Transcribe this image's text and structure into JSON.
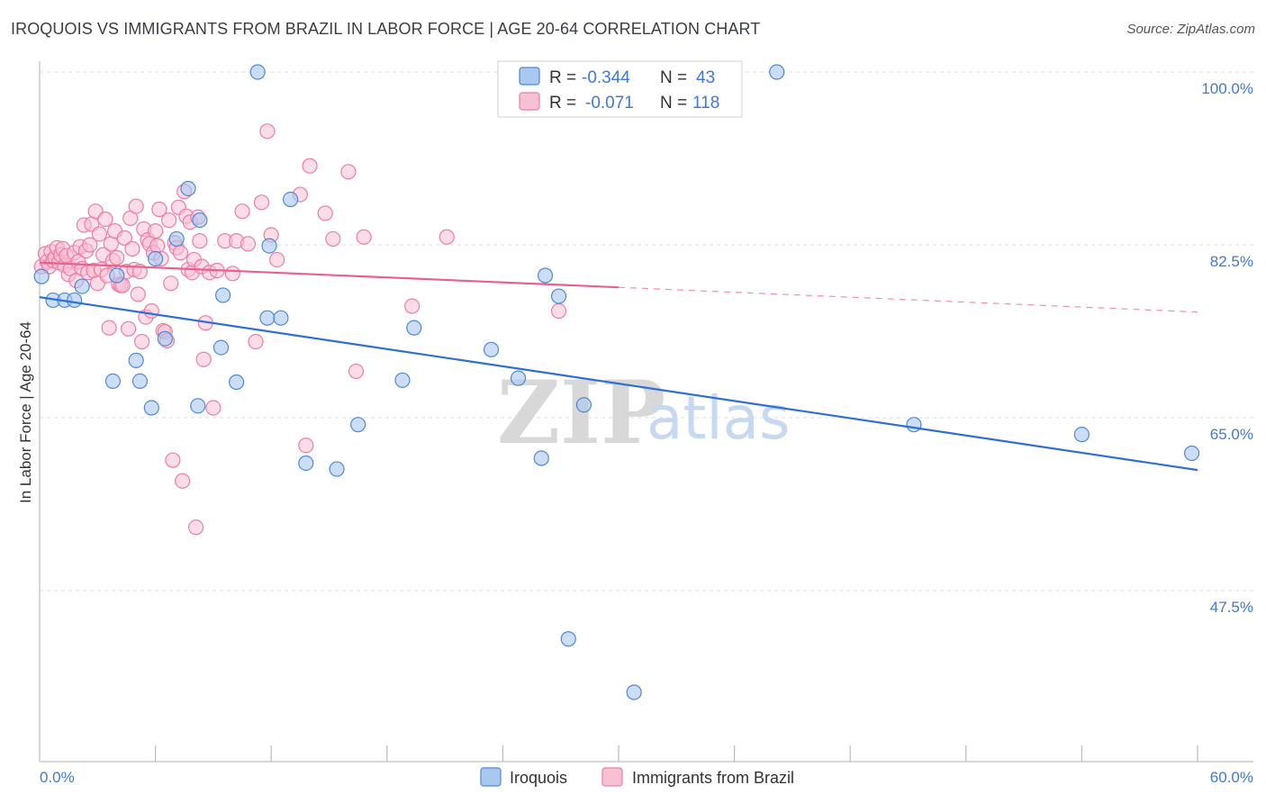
{
  "title": "IROQUOIS VS IMMIGRANTS FROM BRAZIL IN LABOR FORCE | AGE 20-64 CORRELATION CHART",
  "source": "Source: ZipAtlas.com",
  "watermark": {
    "zip": "ZIP",
    "atlas": "atlas"
  },
  "colors": {
    "iroquois_fill": "#a9c8ef",
    "iroquois_stroke": "#4f88d8",
    "iroquois_line": "#2f6fd3",
    "brazil_fill": "#f7c0d3",
    "brazil_stroke": "#e97fa4",
    "brazil_line": "#e8608d",
    "grid": "#dddddd",
    "tick_label": "#3f7ad0"
  },
  "legend": {
    "r_label": "R =",
    "n_label": "N =",
    "iroquois": {
      "r": "-0.344",
      "n": "43"
    },
    "brazil": {
      "r": "-0.071",
      "n": "118"
    }
  },
  "bottom_legend": [
    "Iroquois",
    "Immigrants from Brazil"
  ],
  "chart_data": {
    "type": "scatter",
    "title": "IROQUOIS VS IMMIGRANTS FROM BRAZIL IN LABOR FORCE | AGE 20-64 CORRELATION CHART",
    "xlabel": "",
    "ylabel": "In Labor Force | Age 20-64",
    "xlim": [
      0,
      60
    ],
    "ylim": [
      29,
      102
    ],
    "x_tick_labels": [
      "0.0%",
      "60.0%"
    ],
    "y_ticks": [
      47.5,
      65.0,
      82.5,
      100.0
    ],
    "y_tick_labels": [
      "47.5%",
      "65.0%",
      "82.5%",
      "100.0%"
    ],
    "grid": true,
    "series": [
      {
        "name": "Iroquois",
        "r": -0.344,
        "n": 43,
        "trend": {
          "x": [
            0,
            60
          ],
          "y": [
            77.2,
            59.7
          ],
          "dashed_from": null
        },
        "points": [
          [
            0.1,
            79.3
          ],
          [
            0.7,
            76.9
          ],
          [
            1.3,
            76.9
          ],
          [
            1.8,
            76.9
          ],
          [
            2.2,
            78.3
          ],
          [
            4.0,
            79.4
          ],
          [
            3.8,
            68.7
          ],
          [
            5.0,
            70.8
          ],
          [
            5.2,
            68.7
          ],
          [
            5.8,
            66.0
          ],
          [
            6.0,
            81.1
          ],
          [
            6.5,
            73.0
          ],
          [
            7.1,
            83.1
          ],
          [
            7.7,
            88.2
          ],
          [
            8.3,
            85.0
          ],
          [
            8.2,
            66.2
          ],
          [
            9.4,
            72.1
          ],
          [
            9.5,
            77.4
          ],
          [
            10.2,
            68.6
          ],
          [
            11.3,
            100.0
          ],
          [
            11.8,
            75.1
          ],
          [
            11.9,
            82.4
          ],
          [
            12.5,
            75.1
          ],
          [
            13.0,
            87.1
          ],
          [
            13.8,
            60.4
          ],
          [
            15.4,
            59.8
          ],
          [
            16.5,
            64.3
          ],
          [
            18.8,
            68.8
          ],
          [
            19.4,
            74.1
          ],
          [
            23.4,
            71.9
          ],
          [
            24.8,
            69.0
          ],
          [
            26.0,
            60.9
          ],
          [
            26.2,
            79.4
          ],
          [
            26.9,
            77.3
          ],
          [
            27.4,
            42.6
          ],
          [
            28.2,
            66.3
          ],
          [
            30.8,
            37.2
          ],
          [
            38.2,
            100.0
          ],
          [
            45.3,
            64.3
          ],
          [
            54.0,
            63.3
          ],
          [
            59.7,
            61.4
          ]
        ]
      },
      {
        "name": "Immigrants from Brazil",
        "r": -0.071,
        "n": 118,
        "trend": {
          "x": [
            0,
            60
          ],
          "y": [
            80.7,
            75.7
          ],
          "dashed_from": 30
        },
        "points": [
          [
            0.1,
            80.3
          ],
          [
            0.3,
            81.6
          ],
          [
            0.4,
            80.8
          ],
          [
            0.5,
            80.3
          ],
          [
            0.6,
            81.8
          ],
          [
            0.7,
            80.9
          ],
          [
            0.8,
            81.2
          ],
          [
            0.9,
            82.2
          ],
          [
            1.0,
            80.7
          ],
          [
            1.1,
            81.5
          ],
          [
            1.2,
            82.1
          ],
          [
            1.3,
            80.4
          ],
          [
            1.4,
            81.4
          ],
          [
            1.5,
            79.5
          ],
          [
            1.6,
            80.1
          ],
          [
            1.8,
            81.7
          ],
          [
            1.9,
            78.9
          ],
          [
            2.0,
            80.8
          ],
          [
            2.1,
            82.3
          ],
          [
            2.2,
            80.1
          ],
          [
            2.3,
            84.5
          ],
          [
            2.4,
            81.9
          ],
          [
            2.5,
            79.7
          ],
          [
            2.6,
            82.5
          ],
          [
            2.7,
            84.6
          ],
          [
            2.8,
            79.9
          ],
          [
            2.9,
            85.9
          ],
          [
            3.0,
            78.6
          ],
          [
            3.1,
            83.6
          ],
          [
            3.2,
            80.0
          ],
          [
            3.3,
            81.5
          ],
          [
            3.4,
            85.1
          ],
          [
            3.5,
            79.4
          ],
          [
            3.6,
            74.1
          ],
          [
            3.7,
            82.6
          ],
          [
            3.8,
            80.9
          ],
          [
            3.9,
            83.9
          ],
          [
            4.0,
            81.2
          ],
          [
            4.1,
            78.5
          ],
          [
            4.2,
            78.4
          ],
          [
            4.3,
            78.4
          ],
          [
            4.4,
            83.2
          ],
          [
            4.5,
            79.8
          ],
          [
            4.6,
            74.0
          ],
          [
            4.7,
            85.2
          ],
          [
            4.8,
            82.1
          ],
          [
            4.9,
            80.0
          ],
          [
            5.0,
            86.4
          ],
          [
            5.1,
            77.5
          ],
          [
            5.2,
            79.8
          ],
          [
            5.3,
            72.7
          ],
          [
            5.4,
            84.1
          ],
          [
            5.5,
            75.2
          ],
          [
            5.6,
            83.0
          ],
          [
            5.7,
            82.6
          ],
          [
            5.8,
            75.8
          ],
          [
            5.9,
            81.7
          ],
          [
            6.0,
            83.9
          ],
          [
            6.1,
            82.4
          ],
          [
            6.2,
            86.1
          ],
          [
            6.3,
            81.1
          ],
          [
            6.4,
            73.8
          ],
          [
            6.5,
            73.7
          ],
          [
            6.6,
            72.8
          ],
          [
            6.7,
            85.0
          ],
          [
            6.8,
            78.6
          ],
          [
            6.9,
            60.7
          ],
          [
            7.0,
            82.7
          ],
          [
            7.1,
            82.2
          ],
          [
            7.2,
            86.3
          ],
          [
            7.3,
            81.7
          ],
          [
            7.4,
            58.6
          ],
          [
            7.5,
            87.9
          ],
          [
            7.6,
            85.4
          ],
          [
            7.7,
            80.0
          ],
          [
            7.8,
            84.8
          ],
          [
            7.9,
            79.7
          ],
          [
            8.0,
            81.0
          ],
          [
            8.1,
            53.9
          ],
          [
            8.2,
            85.3
          ],
          [
            8.3,
            82.9
          ],
          [
            8.4,
            80.3
          ],
          [
            8.5,
            70.9
          ],
          [
            8.6,
            74.6
          ],
          [
            8.8,
            79.7
          ],
          [
            9.0,
            66.0
          ],
          [
            9.2,
            79.9
          ],
          [
            9.6,
            82.9
          ],
          [
            10.0,
            79.6
          ],
          [
            10.2,
            82.9
          ],
          [
            10.5,
            85.9
          ],
          [
            10.8,
            82.6
          ],
          [
            11.2,
            72.7
          ],
          [
            11.5,
            86.8
          ],
          [
            11.8,
            94.0
          ],
          [
            12.0,
            83.5
          ],
          [
            12.3,
            81.0
          ],
          [
            13.5,
            87.6
          ],
          [
            13.8,
            62.2
          ],
          [
            14.0,
            90.5
          ],
          [
            14.8,
            85.7
          ],
          [
            15.2,
            83.1
          ],
          [
            16.0,
            89.9
          ],
          [
            16.4,
            69.7
          ],
          [
            16.8,
            83.3
          ],
          [
            19.3,
            76.3
          ],
          [
            21.1,
            83.3
          ],
          [
            26.9,
            75.8
          ]
        ]
      }
    ]
  }
}
